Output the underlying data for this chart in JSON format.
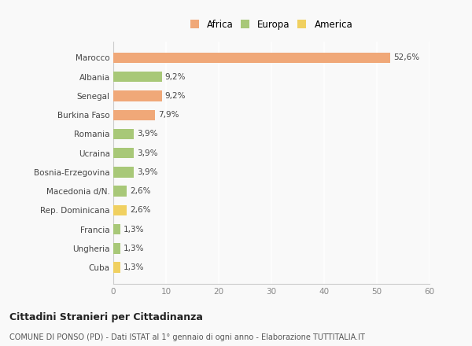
{
  "categories": [
    "Marocco",
    "Albania",
    "Senegal",
    "Burkina Faso",
    "Romania",
    "Ucraina",
    "Bosnia-Erzegovina",
    "Macedonia d/N.",
    "Rep. Dominicana",
    "Francia",
    "Ungheria",
    "Cuba"
  ],
  "values": [
    52.6,
    9.2,
    9.2,
    7.9,
    3.9,
    3.9,
    3.9,
    2.6,
    2.6,
    1.3,
    1.3,
    1.3
  ],
  "labels": [
    "52,6%",
    "9,2%",
    "9,2%",
    "7,9%",
    "3,9%",
    "3,9%",
    "3,9%",
    "2,6%",
    "2,6%",
    "1,3%",
    "1,3%",
    "1,3%"
  ],
  "colors": [
    "#F0A878",
    "#A8C878",
    "#F0A878",
    "#F0A878",
    "#A8C878",
    "#A8C878",
    "#A8C878",
    "#A8C878",
    "#F0D060",
    "#A8C878",
    "#A8C878",
    "#F0D060"
  ],
  "legend": [
    {
      "label": "Africa",
      "color": "#F0A878"
    },
    {
      "label": "Europa",
      "color": "#A8C878"
    },
    {
      "label": "America",
      "color": "#F0D060"
    }
  ],
  "xlim": [
    0,
    60
  ],
  "xticks": [
    0,
    10,
    20,
    30,
    40,
    50,
    60
  ],
  "title1": "Cittadini Stranieri per Cittadinanza",
  "title2": "COMUNE DI PONSO (PD) - Dati ISTAT al 1° gennaio di ogni anno - Elaborazione TUTTITALIA.IT",
  "background_color": "#f9f9f9",
  "grid_color": "#ffffff",
  "bar_height": 0.55,
  "label_fontsize": 7.5,
  "ytick_fontsize": 7.5,
  "xtick_fontsize": 7.5,
  "legend_fontsize": 8.5
}
